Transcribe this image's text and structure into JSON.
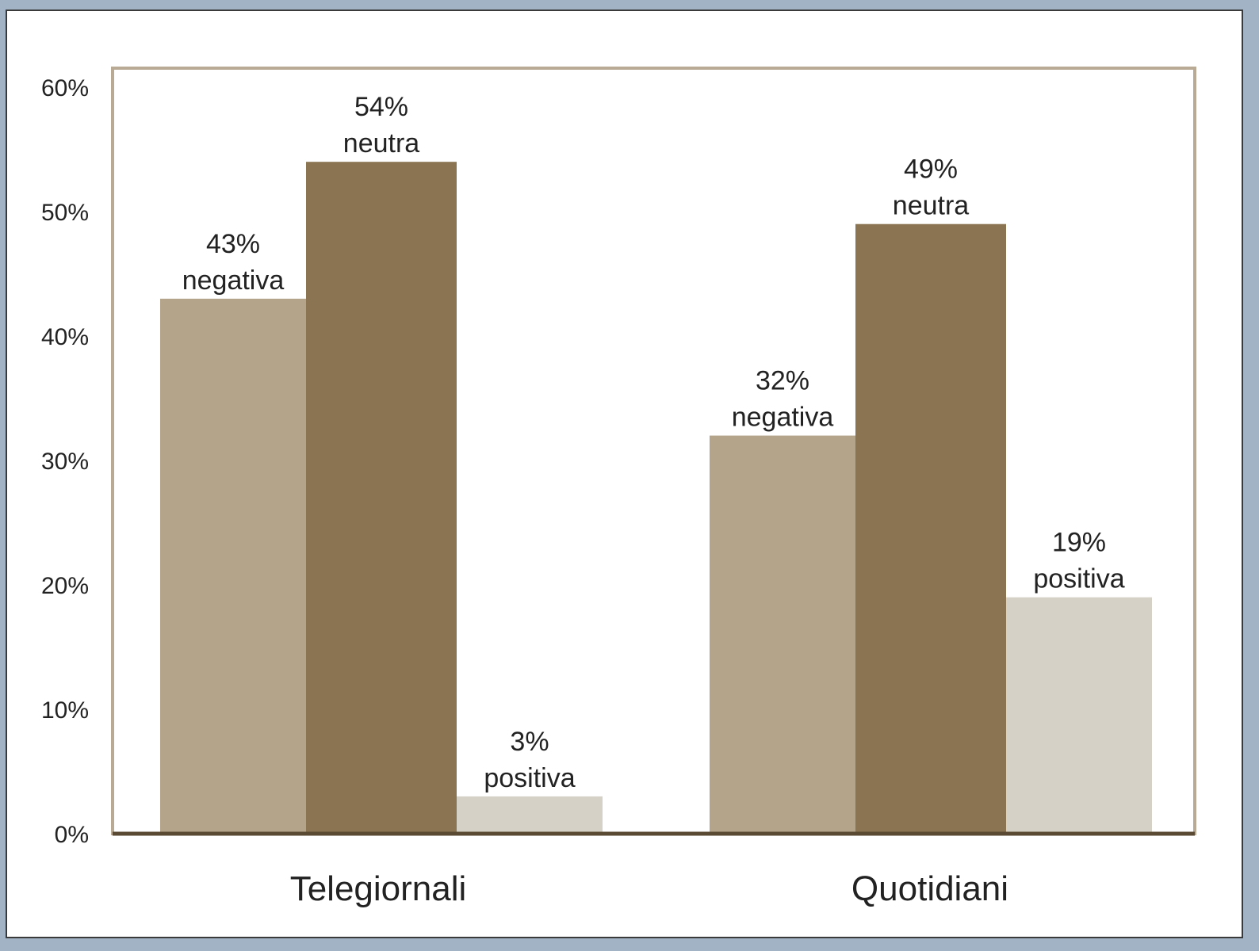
{
  "chart_data": {
    "type": "bar",
    "categories": [
      "Telegiornali",
      "Quotidiani"
    ],
    "series": [
      {
        "name": "negativa",
        "values": [
          43,
          32
        ]
      },
      {
        "name": "neutra",
        "values": [
          54,
          49
        ]
      },
      {
        "name": "positiva",
        "values": [
          3,
          19
        ]
      }
    ],
    "data_labels": [
      [
        {
          "value": "43%",
          "text": "negativa"
        },
        {
          "value": "54%",
          "text": "neutra"
        },
        {
          "value": "3%",
          "text": "positiva"
        }
      ],
      [
        {
          "value": "32%",
          "text": "negativa"
        },
        {
          "value": "49%",
          "text": "neutra"
        },
        {
          "value": "19%",
          "text": "positiva"
        }
      ]
    ],
    "yticks": [
      "0%",
      "10%",
      "20%",
      "30%",
      "40%",
      "50%",
      "60%"
    ],
    "ylim": [
      0,
      60
    ],
    "title": "",
    "xlabel": "",
    "ylabel": "",
    "grid": false,
    "colors": {
      "negativa": "#b3a48a",
      "neutra": "#8a7452",
      "positiva": "#d5d1c6",
      "axis": "#5a4a33",
      "border": "#b8aa94"
    }
  }
}
